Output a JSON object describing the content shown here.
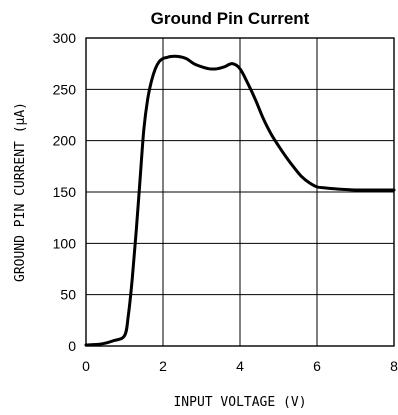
{
  "chart_data": {
    "type": "line",
    "title": "Ground Pin Current",
    "xlabel": "INPUT VOLTAGE (V)",
    "ylabel": "GROUND PIN CURRENT (μA)",
    "xlim": [
      0,
      8
    ],
    "ylim": [
      0,
      300
    ],
    "xticks": [
      0,
      2,
      4,
      6,
      8
    ],
    "yticks": [
      0,
      50,
      100,
      150,
      200,
      250,
      300
    ],
    "grid": true,
    "series": [
      {
        "name": "",
        "x": [
          0,
          0.4,
          0.7,
          1.0,
          1.1,
          1.2,
          1.3,
          1.4,
          1.5,
          1.6,
          1.7,
          1.8,
          1.9,
          2.0,
          2.1,
          2.2,
          2.4,
          2.6,
          2.8,
          3.0,
          3.2,
          3.4,
          3.6,
          3.8,
          4.0,
          4.2,
          4.4,
          4.6,
          4.8,
          5.0,
          5.2,
          5.4,
          5.6,
          5.8,
          6.0,
          6.2,
          6.5,
          7.0,
          7.5,
          8.0
        ],
        "y": [
          1,
          2,
          5,
          10,
          30,
          65,
          110,
          160,
          210,
          240,
          258,
          270,
          277,
          280,
          281,
          282,
          282,
          280,
          275,
          272,
          270,
          270,
          272,
          275,
          270,
          256,
          240,
          222,
          207,
          195,
          184,
          174,
          165,
          159,
          155,
          154,
          153,
          152,
          152,
          152
        ]
      }
    ]
  }
}
